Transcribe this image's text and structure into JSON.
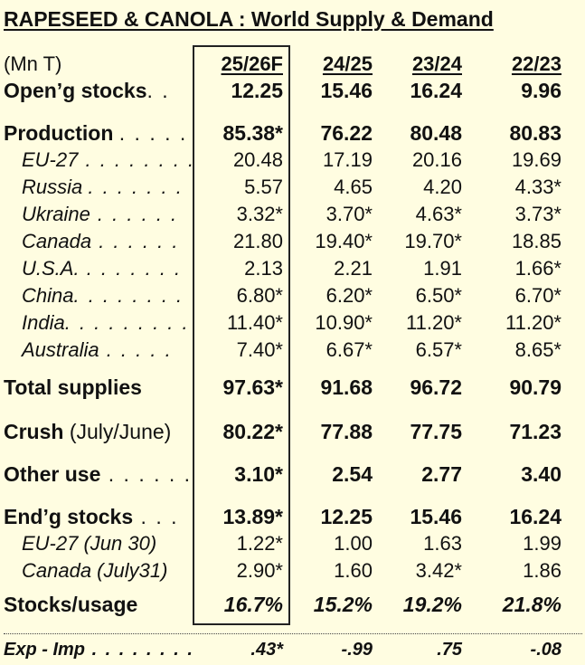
{
  "title": "RAPESEED & CANOLA :  World Supply & Demand",
  "unit": "(Mn T)",
  "columns": [
    "25/26F",
    "24/25",
    "23/24",
    "22/23"
  ],
  "rows": [
    {
      "label": "Open’g  stocks",
      "dots": ". .",
      "values": [
        "12.25",
        "15.46",
        "16.24",
        "9.96"
      ]
    },
    {
      "label": "Production",
      "dots": ". . . . .",
      "values": [
        "85.38*",
        "76.22",
        "80.48",
        "80.83"
      ]
    },
    {
      "label": "EU-27",
      "dots": " . . . . . . . .",
      "values": [
        "20.48",
        "17.19",
        "20.16",
        "19.69"
      ]
    },
    {
      "label": "Russia",
      "dots": ". . . . . . .",
      "values": [
        "5.57",
        "4.65",
        "4.20",
        "4.33*"
      ]
    },
    {
      "label": "Ukraine",
      "dots": " . . . . . .",
      "values": [
        "3.32*",
        "3.70*",
        "4.63*",
        "3.73*"
      ]
    },
    {
      "label": "Canada",
      "dots": " . . . . . .",
      "values": [
        "21.80",
        "19.40*",
        "19.70*",
        "18.85"
      ]
    },
    {
      "label": "U.S.A.",
      "dots": " . . . . . . .",
      "values": [
        "2.13",
        "2.21",
        "1.91",
        "1.66*"
      ]
    },
    {
      "label": "China",
      "dots": ". . . . . . . .",
      "values": [
        "6.80*",
        "6.20*",
        "6.50*",
        "6.70*"
      ]
    },
    {
      "label": "India",
      "dots": ". . . . . . . . .",
      "values": [
        "11.40*",
        "10.90*",
        "11.20*",
        "11.20*"
      ]
    },
    {
      "label": "Australia",
      "dots": " . . . . .",
      "values": [
        "7.40*",
        "6.67*",
        "6.57*",
        "8.65*"
      ]
    },
    {
      "label": "Total supplies",
      "dots": "",
      "values": [
        "97.63*",
        "91.68",
        "96.72",
        "90.79"
      ]
    },
    {
      "label": "Crush",
      "extra": " (July/June)",
      "dots": "",
      "values": [
        "80.22*",
        "77.88",
        "77.75",
        "71.23"
      ]
    },
    {
      "label": "Other use",
      "dots": " . . . . . .",
      "values": [
        "3.10*",
        "2.54",
        "2.77",
        "3.40"
      ]
    },
    {
      "label": "End’g stocks",
      "dots": " . . .",
      "values": [
        "13.89*",
        "12.25",
        "15.46",
        "16.24"
      ]
    },
    {
      "label": "EU-27 (Jun 30)",
      "dots": "",
      "values": [
        "1.22*",
        "1.00",
        "1.63",
        "1.99"
      ]
    },
    {
      "label": "Canada (July31)",
      "dots": "",
      "values": [
        "2.90*",
        "1.60",
        "3.42*",
        "1.86"
      ]
    },
    {
      "label": "Stocks/usage",
      "dots": "",
      "values": [
        "16.7%",
        "15.2%",
        "19.2%",
        "21.8%"
      ]
    },
    {
      "label": "Exp - Imp",
      "dots": " . . . . . . . .",
      "values": [
        ".43*",
        "-.99",
        ".75",
        "-.08"
      ]
    }
  ]
}
